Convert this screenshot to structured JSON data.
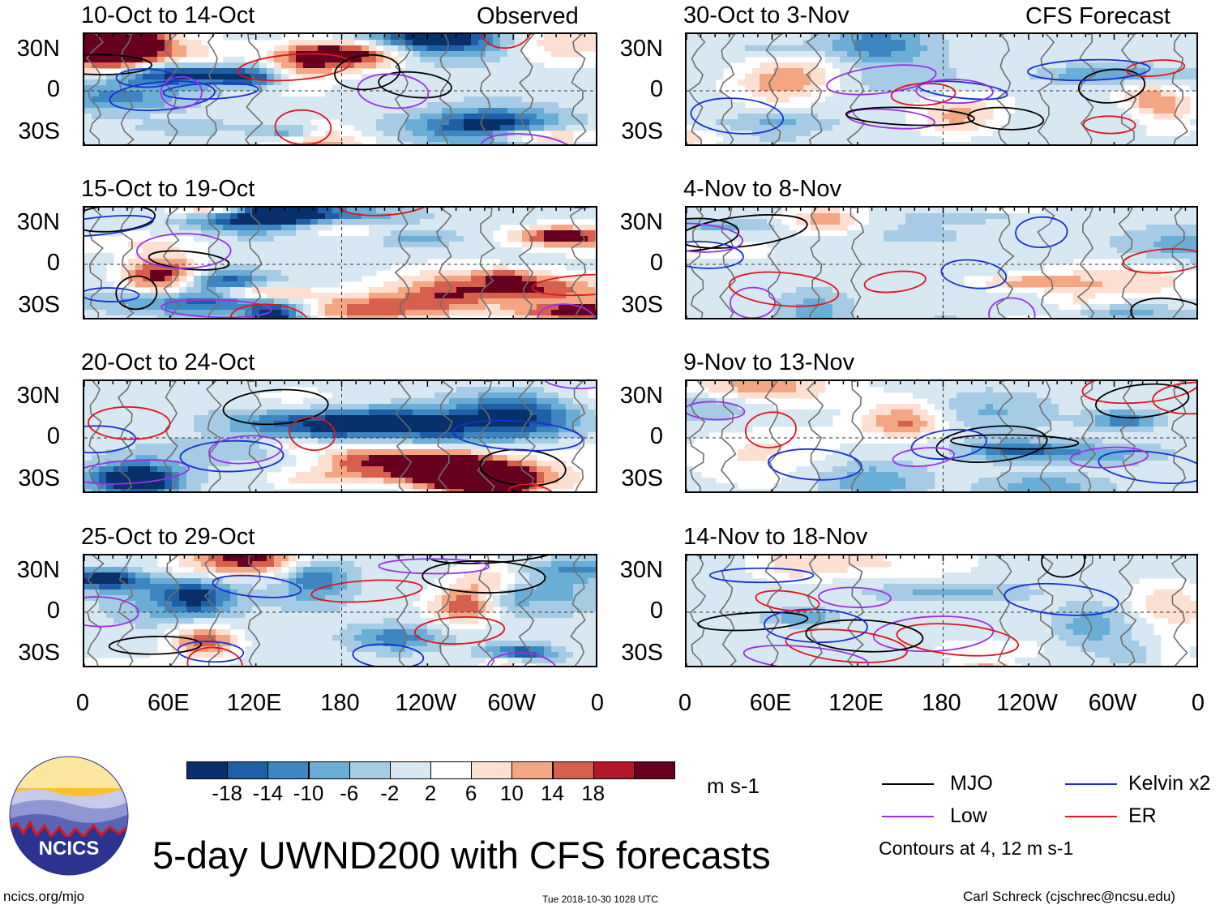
{
  "chart_data": {
    "type": "heatmap",
    "title": "5-day UWND200 with CFS forecasts",
    "variable": "200-hPa zonal wind anomaly (5-day mean)",
    "columns": [
      {
        "header": "Observed",
        "panels": [
          "10-Oct to 14-Oct",
          "15-Oct to 19-Oct",
          "20-Oct to 24-Oct",
          "25-Oct to 29-Oct"
        ]
      },
      {
        "header": "CFS Forecast",
        "panels": [
          "30-Oct to 3-Nov",
          "4-Nov to 8-Nov",
          "9-Nov to 13-Nov",
          "14-Nov to 18-Nov"
        ]
      }
    ],
    "y_ticks": [
      "30N",
      "0",
      "30S"
    ],
    "ylim": [
      -40,
      40
    ],
    "x_ticks": [
      "0",
      "60E",
      "120E",
      "180",
      "120W",
      "60W",
      "0"
    ],
    "xlim": [
      0,
      360
    ],
    "colorbar": {
      "unit": "m s-1",
      "ticks": [
        "-18",
        "-14",
        "-10",
        "-6",
        "-2",
        "2",
        "6",
        "10",
        "14",
        "18"
      ],
      "colors": [
        "#08306b",
        "#1f5fa8",
        "#3d86c2",
        "#6aaed6",
        "#a5cce4",
        "#d8e8f3",
        "#ffffff",
        "#fde0d2",
        "#f4a582",
        "#d6604d",
        "#b2182b",
        "#67001f"
      ]
    },
    "contour_legend": [
      {
        "label": "MJO",
        "color": "#000000"
      },
      {
        "label": "Kelvin x2",
        "color": "#1530d6"
      },
      {
        "label": "Low",
        "color": "#9b30e8"
      },
      {
        "label": "ER",
        "color": "#e0141e"
      }
    ],
    "contour_note": "Contours at 4, 12 m s-1"
  },
  "logo": {
    "text": "NCICS"
  },
  "footer": {
    "url": "ncics.org/mjo",
    "timestamp": "Tue 2018-10-30 1028 UTC",
    "credit": "Carl Schreck (cjschrec@ncsu.edu)"
  }
}
